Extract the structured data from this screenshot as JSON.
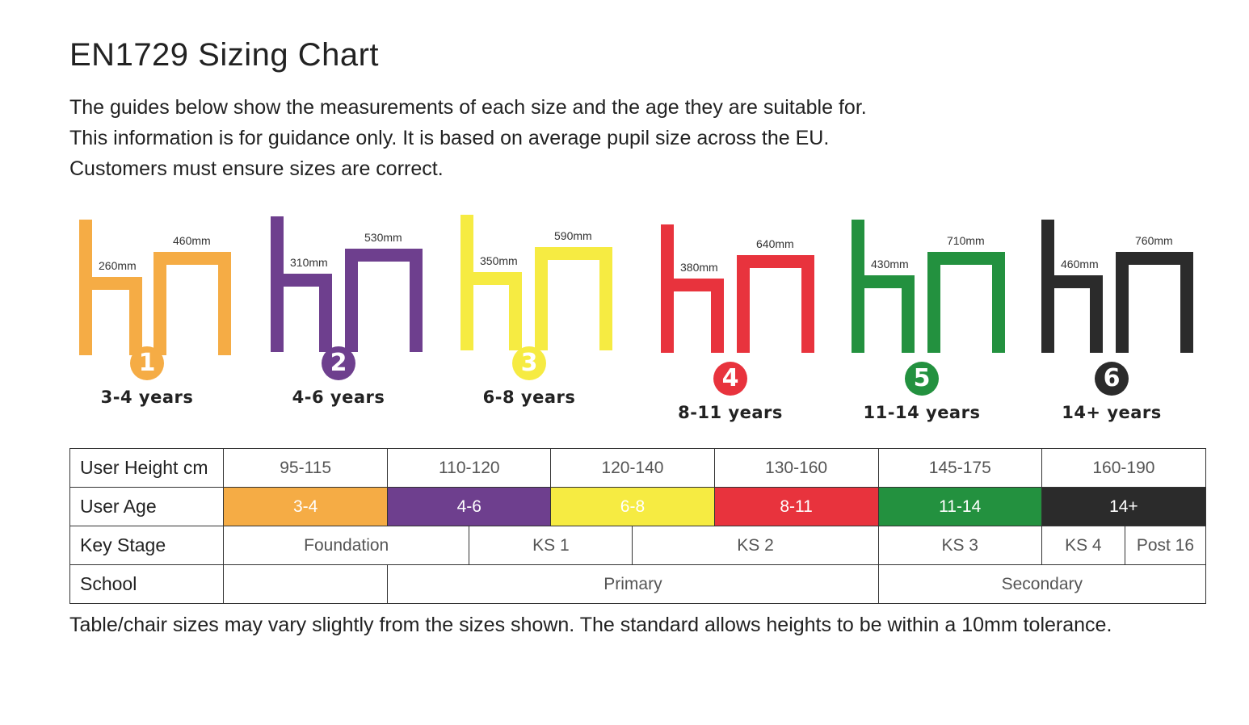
{
  "title": "EN1729 Sizing Chart",
  "intro": [
    "The guides below show the measurements of each size and the age they are suitable for.",
    "This information is for guidance only. It is based on average pupil size across the EU.",
    "Customers must ensure sizes are correct."
  ],
  "sizes": [
    {
      "number": "1",
      "age": "3-4 years",
      "chair": "260mm",
      "table": "460mm",
      "color": "#F5AC45"
    },
    {
      "number": "2",
      "age": "4-6 years",
      "chair": "310mm",
      "table": "530mm",
      "color": "#6E3F8E"
    },
    {
      "number": "3",
      "age": "6-8 years",
      "chair": "350mm",
      "table": "590mm",
      "color": "#F6EB42"
    },
    {
      "number": "4",
      "age": "8-11 years",
      "chair": "380mm",
      "table": "640mm",
      "color": "#E8333D"
    },
    {
      "number": "5",
      "age": "11-14 years",
      "chair": "430mm",
      "table": "710mm",
      "color": "#23913F"
    },
    {
      "number": "6",
      "age": "14+ years",
      "chair": "460mm",
      "table": "760mm",
      "color": "#2B2B2B"
    }
  ],
  "table": {
    "rows": {
      "height_label": "User Height cm",
      "age_label": "User Age",
      "keystage_label": "Key Stage",
      "school_label": "School"
    },
    "heights": [
      "95-115",
      "110-120",
      "120-140",
      "130-160",
      "145-175",
      "160-190"
    ],
    "ages": [
      "3-4",
      "4-6",
      "6-8",
      "8-11",
      "11-14",
      "14+"
    ],
    "key_stages": [
      "Foundation",
      "KS 1",
      "KS 2",
      "KS 3",
      "KS 4",
      "Post 16"
    ],
    "school": [
      "",
      "Primary",
      "Secondary"
    ]
  },
  "footer": "Table/chair sizes may vary slightly from the sizes shown. The standard allows heights to be within a 10mm tolerance."
}
